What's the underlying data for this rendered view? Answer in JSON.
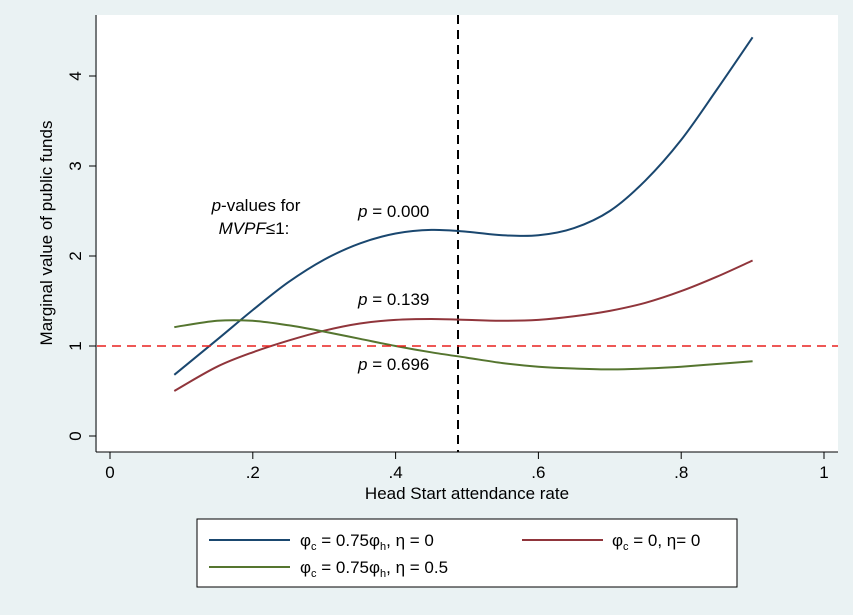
{
  "chart_data": {
    "type": "line",
    "xlabel": "Head Start attendance rate",
    "ylabel": "Marginal value of public funds",
    "xlim": [
      0,
      1
    ],
    "ylim": [
      0,
      4.5
    ],
    "x_ticks": [
      0,
      0.2,
      0.4,
      0.6,
      0.8,
      1
    ],
    "x_tick_labels": [
      "0",
      ".2",
      ".4",
      ".6",
      ".8",
      "1"
    ],
    "y_ticks": [
      0,
      1,
      2,
      3,
      4
    ],
    "y_tick_labels": [
      "0",
      "1",
      "2",
      "3",
      "4"
    ],
    "grid": false,
    "legend_position": "bottom",
    "reference_lines": [
      {
        "orientation": "horizontal",
        "value": 1,
        "style": "dashed",
        "color": "#e8201f"
      },
      {
        "orientation": "vertical",
        "value": 0.5,
        "style": "dashed",
        "color": "#000000"
      }
    ],
    "series": [
      {
        "name": "φc = 0.75φh, η = 0",
        "color": "#1a476f",
        "x": [
          0.09,
          0.15,
          0.2,
          0.25,
          0.3,
          0.35,
          0.4,
          0.45,
          0.5,
          0.55,
          0.6,
          0.65,
          0.7,
          0.75,
          0.8,
          0.85,
          0.9
        ],
        "y": [
          0.68,
          1.07,
          1.4,
          1.71,
          1.96,
          2.14,
          2.25,
          2.29,
          2.27,
          2.23,
          2.23,
          2.31,
          2.5,
          2.84,
          3.29,
          3.85,
          4.43
        ]
      },
      {
        "name": "φc = 0, η= 0",
        "color": "#90353b",
        "x": [
          0.09,
          0.15,
          0.2,
          0.25,
          0.3,
          0.35,
          0.4,
          0.45,
          0.5,
          0.55,
          0.6,
          0.65,
          0.7,
          0.75,
          0.8,
          0.85,
          0.9
        ],
        "y": [
          0.5,
          0.77,
          0.93,
          1.06,
          1.17,
          1.25,
          1.29,
          1.3,
          1.29,
          1.28,
          1.29,
          1.33,
          1.39,
          1.48,
          1.61,
          1.77,
          1.95
        ]
      },
      {
        "name": "φc = 0.75φh, η = 0.5",
        "color": "#55752f",
        "x": [
          0.09,
          0.15,
          0.2,
          0.25,
          0.3,
          0.35,
          0.4,
          0.45,
          0.5,
          0.55,
          0.6,
          0.65,
          0.7,
          0.75,
          0.8,
          0.85,
          0.9
        ],
        "y": [
          1.21,
          1.28,
          1.28,
          1.23,
          1.16,
          1.08,
          1.0,
          0.93,
          0.87,
          0.81,
          0.77,
          0.75,
          0.74,
          0.75,
          0.77,
          0.8,
          0.83
        ]
      }
    ],
    "annotations": {
      "header_line1": "-values for",
      "header_p": "p",
      "header_line2": "≤1:",
      "header_mvpf": "MVPF",
      "p_italic": "p",
      "p_values": [
        " = 0.000",
        " = 0.139",
        " = 0.696"
      ]
    },
    "legend": {
      "items": [
        {
          "phi": "φ",
          "sub1": "c",
          "mid1": " = 0.75φ",
          "sub2": "h",
          "rest": ", η = 0"
        },
        {
          "phi": "φ",
          "sub1": "c",
          "mid1": " = 0, η= 0",
          "sub2": "",
          "rest": ""
        },
        {
          "phi": "φ",
          "sub1": "c",
          "mid1": " = 0.75φ",
          "sub2": "h",
          "rest": ", η = 0.5"
        }
      ]
    }
  }
}
